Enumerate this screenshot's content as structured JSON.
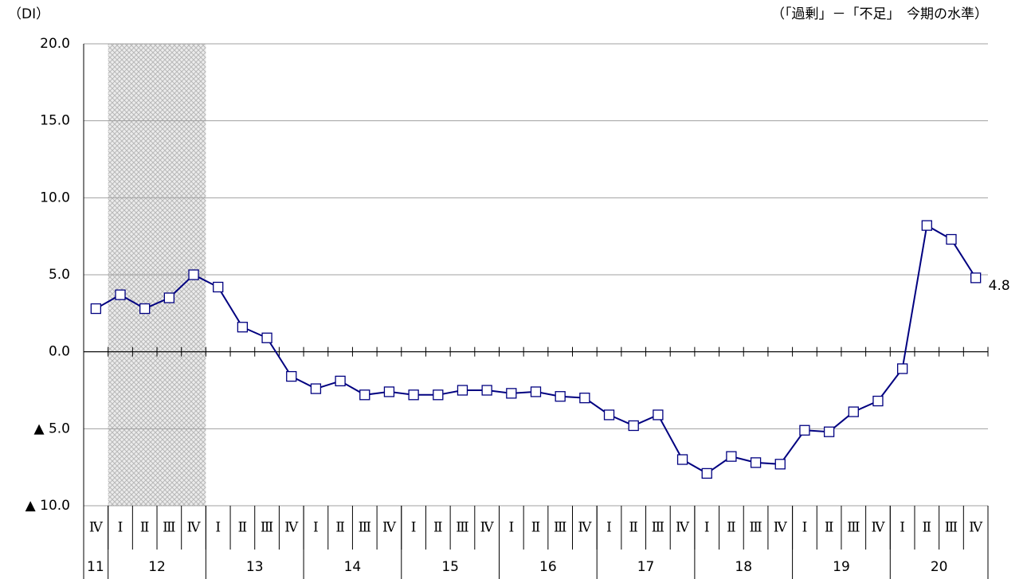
{
  "chart_data": {
    "type": "line",
    "y_label": "（DI）",
    "note": "（「過剰」－「不足」　今期の水準）",
    "groups": [
      {
        "label": "11",
        "quarters": [
          "Ⅳ"
        ]
      },
      {
        "label": "12",
        "quarters": [
          "Ⅰ",
          "Ⅱ",
          "Ⅲ",
          "Ⅳ"
        ],
        "shaded": true
      },
      {
        "label": "13",
        "quarters": [
          "Ⅰ",
          "Ⅱ",
          "Ⅲ",
          "Ⅳ"
        ]
      },
      {
        "label": "14",
        "quarters": [
          "Ⅰ",
          "Ⅱ",
          "Ⅲ",
          "Ⅳ"
        ]
      },
      {
        "label": "15",
        "quarters": [
          "Ⅰ",
          "Ⅱ",
          "Ⅲ",
          "Ⅳ"
        ]
      },
      {
        "label": "16",
        "quarters": [
          "Ⅰ",
          "Ⅱ",
          "Ⅲ",
          "Ⅳ"
        ]
      },
      {
        "label": "17",
        "quarters": [
          "Ⅰ",
          "Ⅱ",
          "Ⅲ",
          "Ⅳ"
        ]
      },
      {
        "label": "18",
        "quarters": [
          "Ⅰ",
          "Ⅱ",
          "Ⅲ",
          "Ⅳ"
        ]
      },
      {
        "label": "19",
        "quarters": [
          "Ⅰ",
          "Ⅱ",
          "Ⅲ",
          "Ⅳ"
        ]
      },
      {
        "label": "20",
        "quarters": [
          "Ⅰ",
          "Ⅱ",
          "Ⅲ",
          "Ⅳ"
        ]
      }
    ],
    "values": [
      2.8,
      3.7,
      2.8,
      3.5,
      5.0,
      4.2,
      1.6,
      0.9,
      -1.6,
      -2.4,
      -1.9,
      -2.8,
      -2.6,
      -2.8,
      -2.8,
      -2.5,
      -2.5,
      -2.7,
      -2.6,
      -2.9,
      -3.0,
      -4.1,
      -4.8,
      -4.1,
      -7.0,
      -7.9,
      -6.8,
      -7.2,
      -7.3,
      -5.1,
      -5.2,
      -3.9,
      -3.2,
      -1.1,
      8.2,
      7.3,
      4.8
    ],
    "labeled_point": 36,
    "color": "#000080",
    "marker_fill": "#ffffff",
    "shade_color": "#c8c8c8",
    "ylim": [
      -10,
      20
    ],
    "yticks": [
      {
        "value": 20,
        "label": "20.0"
      },
      {
        "value": 15,
        "label": "15.0"
      },
      {
        "value": 10,
        "label": "10.0"
      },
      {
        "value": 5,
        "label": "5.0"
      },
      {
        "value": 0,
        "label": "0.0"
      },
      {
        "value": -5,
        "label": "▲ 5.0"
      },
      {
        "value": -10,
        "label": "▲ 10.0"
      }
    ],
    "grid": true
  }
}
